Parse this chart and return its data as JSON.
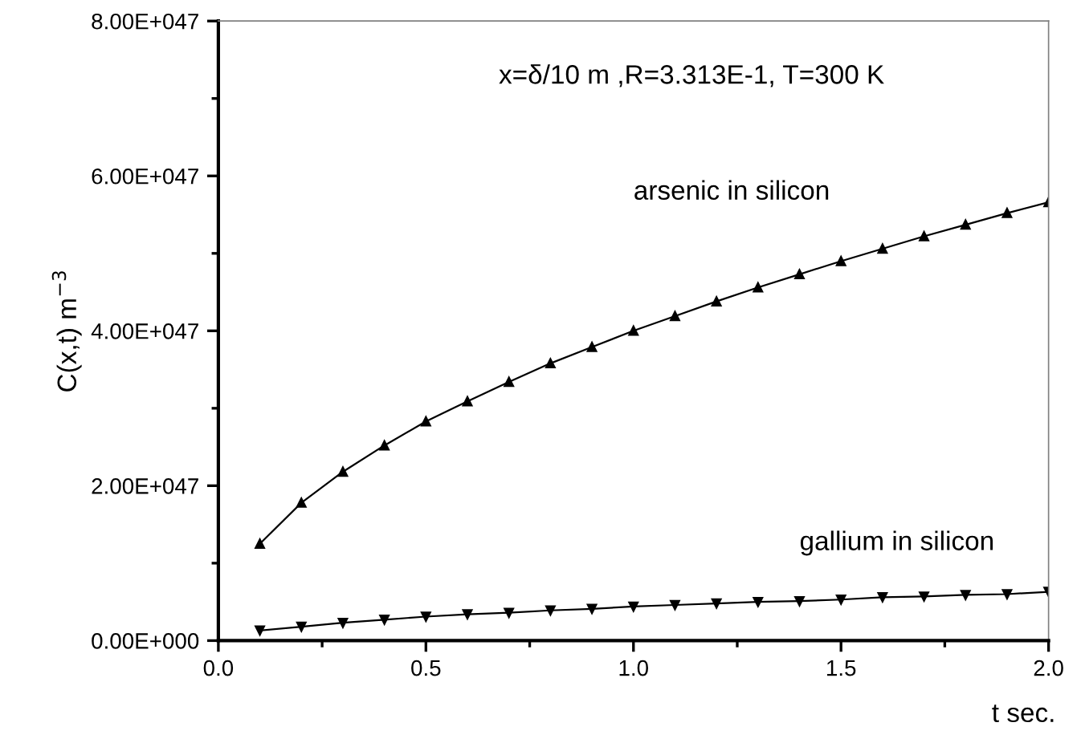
{
  "chart_data": {
    "type": "line",
    "xlabel": "t sec.",
    "ylabel": "C(x,t) m$^{−3}$",
    "annotations": [
      "x=δ/10 m ,R=3.313E-1, T=300 K"
    ],
    "x": [
      0.1,
      0.2,
      0.3,
      0.4,
      0.5,
      0.6,
      0.7,
      0.8,
      0.9,
      1.0,
      1.1,
      1.2,
      1.3,
      1.4,
      1.5,
      1.6,
      1.7,
      1.8,
      1.9,
      2.0
    ],
    "series": [
      {
        "name": "arsenic in silicon",
        "color": "#000000",
        "values": [
          1.25e+47,
          1.78e+47,
          2.18e+47,
          2.52e+47,
          2.83e+47,
          3.09e+47,
          3.34e+47,
          3.58e+47,
          3.79e+47,
          4e+47,
          4.19e+47,
          4.38e+47,
          4.56e+47,
          4.73e+47,
          4.9e+47,
          5.06e+47,
          5.22e+47,
          5.37e+47,
          5.52e+47,
          5.66e+47
        ]
      },
      {
        "name": "gallium in silicon",
        "color": "#000000",
        "values": [
          1.3e+46,
          1.8e+46,
          2.3e+46,
          2.7e+46,
          3.1e+46,
          3.4e+46,
          3.6e+46,
          3.9e+46,
          4.1e+46,
          4.4e+46,
          4.6e+46,
          4.8e+46,
          5e+46,
          5.1e+46,
          5.3e+46,
          5.6e+46,
          5.7e+46,
          5.9e+46,
          6e+46,
          6.3e+46
        ]
      }
    ],
    "xlim": [
      0,
      2.0
    ],
    "xticks": [
      {
        "value": 0,
        "label": "0.0"
      },
      0.5,
      {
        "value": 1,
        "label": "1.0"
      },
      1.5,
      {
        "value": 2,
        "label": "2.0"
      }
    ],
    "ylim": [
      0,
      8e+47
    ],
    "yticks": [
      {
        "value": 0,
        "label": "0.00E+000"
      },
      {
        "value": 2e+47,
        "label": "2.00E+047"
      },
      {
        "value": 4e+47,
        "label": "4.00E+047"
      },
      {
        "value": 6e+47,
        "label": "6.00E+047"
      },
      {
        "value": 8e+47,
        "label": "8.00E+047"
      }
    ],
    "grid": false,
    "legend": false,
    "marker": "triangle",
    "line_style": "solid"
  }
}
